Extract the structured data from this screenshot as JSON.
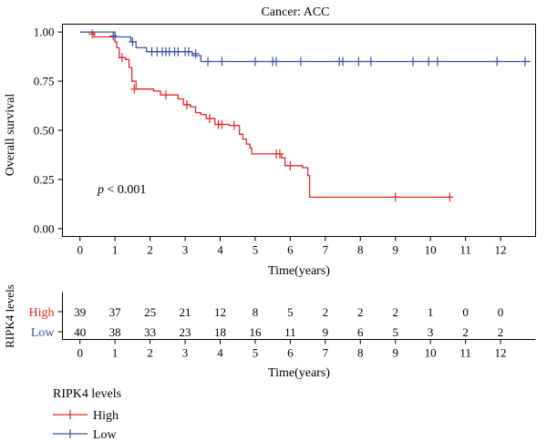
{
  "chart_data": {
    "type": "line",
    "subtype": "kaplan-meier",
    "title": "Cancer: ACC",
    "xlabel": "Time(years)",
    "ylabel": "Overall survival",
    "xlim": [
      -0.5,
      13
    ],
    "ylim": [
      -0.04,
      1.04
    ],
    "x_ticks": [
      "0",
      "1",
      "2",
      "3",
      "4",
      "5",
      "6",
      "7",
      "8",
      "9",
      "10",
      "11",
      "12"
    ],
    "y_ticks": [
      "0.00",
      "0.25",
      "0.50",
      "0.75",
      "1.00"
    ],
    "annotation": {
      "p_symbol": "p",
      "p_rest": " < 0.001",
      "x": 0.5,
      "y": 0.18
    },
    "legend_title": "RIPK4 levels",
    "series": [
      {
        "name": "High",
        "color": "#e8262c",
        "steps": [
          [
            0,
            1.0
          ],
          [
            0.4,
            0.975
          ],
          [
            1.0,
            0.95
          ],
          [
            1.05,
            0.92
          ],
          [
            1.12,
            0.87
          ],
          [
            1.3,
            0.86
          ],
          [
            1.4,
            0.82
          ],
          [
            1.48,
            0.75
          ],
          [
            1.6,
            0.71
          ],
          [
            2.1,
            0.7
          ],
          [
            2.3,
            0.68
          ],
          [
            2.8,
            0.66
          ],
          [
            2.95,
            0.63
          ],
          [
            3.15,
            0.62
          ],
          [
            3.3,
            0.59
          ],
          [
            3.45,
            0.58
          ],
          [
            3.6,
            0.56
          ],
          [
            3.85,
            0.53
          ],
          [
            4.25,
            0.525
          ],
          [
            4.55,
            0.48
          ],
          [
            4.65,
            0.455
          ],
          [
            4.75,
            0.43
          ],
          [
            4.85,
            0.41
          ],
          [
            4.9,
            0.38
          ],
          [
            5.5,
            0.38
          ],
          [
            5.75,
            0.36
          ],
          [
            5.85,
            0.32
          ],
          [
            6.35,
            0.31
          ],
          [
            6.5,
            0.27
          ],
          [
            6.55,
            0.16
          ],
          [
            10.6,
            0.16
          ]
        ],
        "censor": [
          [
            0.35,
            0.99
          ],
          [
            1.2,
            0.87
          ],
          [
            1.55,
            0.71
          ],
          [
            2.45,
            0.68
          ],
          [
            3.05,
            0.63
          ],
          [
            3.7,
            0.56
          ],
          [
            3.95,
            0.53
          ],
          [
            4.05,
            0.53
          ],
          [
            4.4,
            0.525
          ],
          [
            5.6,
            0.38
          ],
          [
            5.7,
            0.38
          ],
          [
            6.0,
            0.32
          ],
          [
            9.0,
            0.16
          ],
          [
            10.55,
            0.16
          ]
        ]
      },
      {
        "name": "Low",
        "color": "#3a50a2",
        "steps": [
          [
            0,
            1.0
          ],
          [
            1.0,
            0.975
          ],
          [
            1.45,
            0.95
          ],
          [
            1.6,
            0.92
          ],
          [
            1.9,
            0.9
          ],
          [
            3.2,
            0.88
          ],
          [
            3.45,
            0.85
          ],
          [
            12.85,
            0.85
          ]
        ],
        "censor": [
          [
            0.95,
            0.98
          ],
          [
            1.5,
            0.95
          ],
          [
            2.05,
            0.9
          ],
          [
            2.2,
            0.9
          ],
          [
            2.35,
            0.9
          ],
          [
            2.45,
            0.9
          ],
          [
            2.55,
            0.9
          ],
          [
            2.7,
            0.9
          ],
          [
            2.8,
            0.9
          ],
          [
            3.0,
            0.9
          ],
          [
            3.1,
            0.9
          ],
          [
            3.3,
            0.89
          ],
          [
            3.65,
            0.85
          ],
          [
            4.05,
            0.85
          ],
          [
            5.0,
            0.85
          ],
          [
            5.5,
            0.85
          ],
          [
            5.6,
            0.85
          ],
          [
            6.3,
            0.85
          ],
          [
            7.4,
            0.85
          ],
          [
            7.5,
            0.85
          ],
          [
            7.95,
            0.85
          ],
          [
            8.3,
            0.85
          ],
          [
            9.5,
            0.85
          ],
          [
            9.95,
            0.85
          ],
          [
            10.2,
            0.85
          ],
          [
            11.9,
            0.85
          ],
          [
            12.7,
            0.85
          ]
        ]
      }
    ],
    "risk_table": {
      "ylabel": "RIPK4 levels",
      "xlabel": "Time(years)",
      "times": [
        "0",
        "1",
        "2",
        "3",
        "4",
        "5",
        "6",
        "7",
        "8",
        "9",
        "10",
        "11",
        "12"
      ],
      "rows": [
        {
          "name": "High",
          "color": "#e8262c",
          "counts": [
            "39",
            "37",
            "25",
            "21",
            "12",
            "8",
            "5",
            "2",
            "2",
            "2",
            "1",
            "0",
            "0"
          ]
        },
        {
          "name": "Low",
          "color": "#3a50a2",
          "counts": [
            "40",
            "38",
            "33",
            "23",
            "18",
            "16",
            "11",
            "9",
            "6",
            "5",
            "3",
            "2",
            "2"
          ]
        }
      ]
    }
  }
}
